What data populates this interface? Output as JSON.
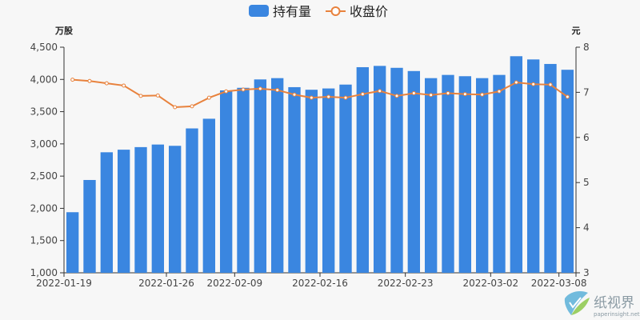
{
  "chart_data": {
    "type": "bar+line",
    "legend": {
      "position": "top-center",
      "items": [
        {
          "name": "持有量",
          "marker": "rounded-rect",
          "color": "#3a86e0"
        },
        {
          "name": "收盘价",
          "marker": "line-circle",
          "color": "#e8823d"
        }
      ]
    },
    "axes": {
      "y_left": {
        "name": "万股",
        "min": 1000,
        "max": 4500,
        "ticks": [
          1000,
          1500,
          2000,
          2500,
          3000,
          3500,
          4000,
          4500
        ],
        "tick_labels": [
          "1,000",
          "1,500",
          "2,000",
          "2,500",
          "3,000",
          "3,500",
          "4,000",
          "4,500"
        ]
      },
      "y_right": {
        "name": "元",
        "min": 3,
        "max": 8,
        "ticks": [
          3,
          4,
          5,
          6,
          7,
          8
        ],
        "tick_labels": [
          "3",
          "4",
          "5",
          "6",
          "7",
          "8"
        ]
      },
      "x": {
        "tick_labels": [
          "2022-01-19",
          "2022-01-26",
          "2022-02-09",
          "2022-02-16",
          "2022-02-23",
          "2022-03-02",
          "2022-03-08"
        ],
        "tick_label_indices": [
          0,
          6,
          10,
          15,
          20,
          25,
          29
        ]
      }
    },
    "grid": false,
    "categories": [
      "2022-01-19",
      "2022-01-20",
      "2022-01-21",
      "2022-01-24",
      "2022-01-25",
      "2022-01-26",
      "2022-01-27",
      "2022-01-28",
      "2022-02-07",
      "2022-02-08",
      "2022-02-09",
      "2022-02-10",
      "2022-02-11",
      "2022-02-14",
      "2022-02-15",
      "2022-02-16",
      "2022-02-17",
      "2022-02-18",
      "2022-02-21",
      "2022-02-22",
      "2022-02-23",
      "2022-02-24",
      "2022-02-25",
      "2022-02-28",
      "2022-03-01",
      "2022-03-02",
      "2022-03-03",
      "2022-03-04",
      "2022-03-07",
      "2022-03-08"
    ],
    "series": [
      {
        "name": "持有量",
        "type": "bar",
        "axis": "left",
        "color": "#3a86e0",
        "values": [
          1940,
          2440,
          2870,
          2910,
          2950,
          2990,
          2970,
          3240,
          3390,
          3830,
          3870,
          4000,
          4020,
          3880,
          3840,
          3860,
          3920,
          4190,
          4210,
          4180,
          4130,
          4020,
          4070,
          4050,
          4020,
          4070,
          4360,
          4310,
          4240,
          4150
        ]
      },
      {
        "name": "收盘价",
        "type": "line",
        "axis": "right",
        "color": "#e8823d",
        "values": [
          7.28,
          7.25,
          7.2,
          7.15,
          6.92,
          6.93,
          6.67,
          6.69,
          6.88,
          7.02,
          7.06,
          7.08,
          7.05,
          6.95,
          6.88,
          6.9,
          6.88,
          6.96,
          7.03,
          6.92,
          6.98,
          6.94,
          6.98,
          6.96,
          6.95,
          7.02,
          7.22,
          7.18,
          7.17,
          6.9
        ]
      }
    ]
  },
  "watermark": {
    "brand": "纸视界",
    "site": "paperinsight.net",
    "icon": "paperinsight-logo-icon"
  }
}
